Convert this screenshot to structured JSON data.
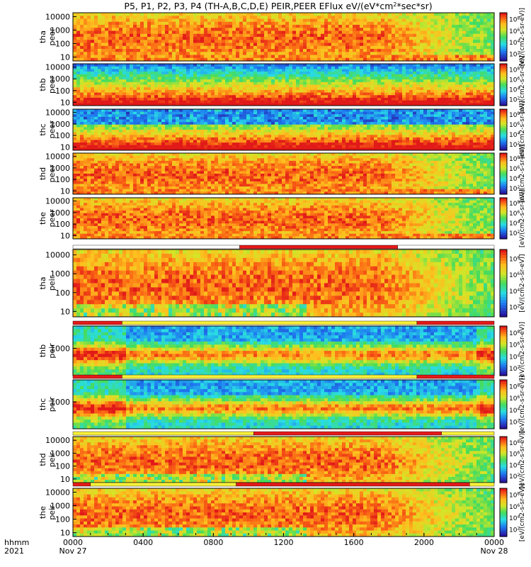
{
  "chart_data": {
    "type": "heatmap",
    "title_main": "P5, P1, P2, P3, P4 (TH-A,B,C,D,E) PEIR,PEER EFlux eV/(eV*cm",
    "title_sup": "2",
    "title_end": "*sec*sr)",
    "colorbar_label": "[eV/(cm2-s-sr-eV)]",
    "colorbar_ticks": [
      "10",
      "10",
      "10",
      "10"
    ],
    "colorbar_exponents": [
      "8",
      "6",
      "4",
      "2"
    ],
    "x_ticks": [
      "0000",
      "0400",
      "0800",
      "1200",
      "1600",
      "2000",
      "0000"
    ],
    "x_dates": [
      "Nov 27",
      "Nov 28"
    ],
    "x_row_labels": [
      "hhmm",
      "2021"
    ],
    "x_range_hours": [
      0,
      24
    ],
    "panels": [
      {
        "name": "tha peer",
        "label1": "tha",
        "label2": "peer",
        "ticks": [
          "10000",
          "1000",
          "100",
          "10"
        ],
        "ticks_only_1000": false
      },
      {
        "name": "thb peer",
        "label1": "thb",
        "label2": "peer",
        "ticks": [
          "10000",
          "1000",
          "100",
          "10"
        ],
        "ticks_only_1000": false
      },
      {
        "name": "thc peer",
        "label1": "thc",
        "label2": "peer",
        "ticks": [
          "10000",
          "1000",
          "100",
          "10"
        ],
        "ticks_only_1000": false
      },
      {
        "name": "thd peer",
        "label1": "thd",
        "label2": "peer",
        "ticks": [
          "10000",
          "1000",
          "100",
          "10"
        ],
        "ticks_only_1000": false
      },
      {
        "name": "the peer",
        "label1": "the",
        "label2": "peer",
        "ticks": [
          "10000",
          "1000",
          "100",
          "10"
        ],
        "ticks_only_1000": false
      },
      {
        "name": "tha peir",
        "label1": "tha",
        "label2": "peir",
        "ticks": [
          "10000",
          "1000",
          "100",
          "10"
        ],
        "ticks_only_1000": false
      },
      {
        "name": "thb peir",
        "label1": "thb",
        "label2": "peir",
        "ticks": [
          "1000"
        ],
        "ticks_only_1000": true
      },
      {
        "name": "thc peir",
        "label1": "thc",
        "label2": "peir",
        "ticks": [
          "1000"
        ],
        "ticks_only_1000": true
      },
      {
        "name": "thd peir",
        "label1": "thd",
        "label2": "peir",
        "ticks": [
          "10000",
          "1000",
          "100",
          "10"
        ],
        "ticks_only_1000": false
      },
      {
        "name": "the peir",
        "label1": "the",
        "label2": "peir",
        "ticks": [
          "10000",
          "1000",
          "100",
          "10"
        ],
        "ticks_only_1000": false
      }
    ],
    "mode_bars": [
      {
        "above_panel": 5,
        "segments": [
          [
            0,
            9.5,
            "white"
          ],
          [
            9.5,
            18.5,
            "red"
          ],
          [
            18.5,
            24,
            "white"
          ]
        ]
      },
      {
        "above_panel": 6,
        "segments": [
          [
            0,
            2.8,
            "red"
          ],
          [
            2.8,
            19.6,
            "yellow"
          ],
          [
            19.6,
            24,
            "red"
          ]
        ]
      },
      {
        "above_panel": 7,
        "segments": [
          [
            0,
            2.8,
            "red"
          ],
          [
            2.8,
            19.6,
            "yellow"
          ],
          [
            19.6,
            24,
            "red"
          ]
        ]
      },
      {
        "above_panel": 8,
        "segments": [
          [
            0,
            10.3,
            "yellow"
          ],
          [
            10.3,
            21,
            "red"
          ],
          [
            21,
            24,
            "yellow"
          ]
        ]
      },
      {
        "above_panel": 9,
        "segments": [
          [
            0,
            1,
            "red"
          ],
          [
            1,
            9.3,
            "yellow"
          ],
          [
            9.3,
            22.6,
            "red"
          ],
          [
            22.6,
            24,
            "yellow"
          ]
        ]
      }
    ]
  }
}
